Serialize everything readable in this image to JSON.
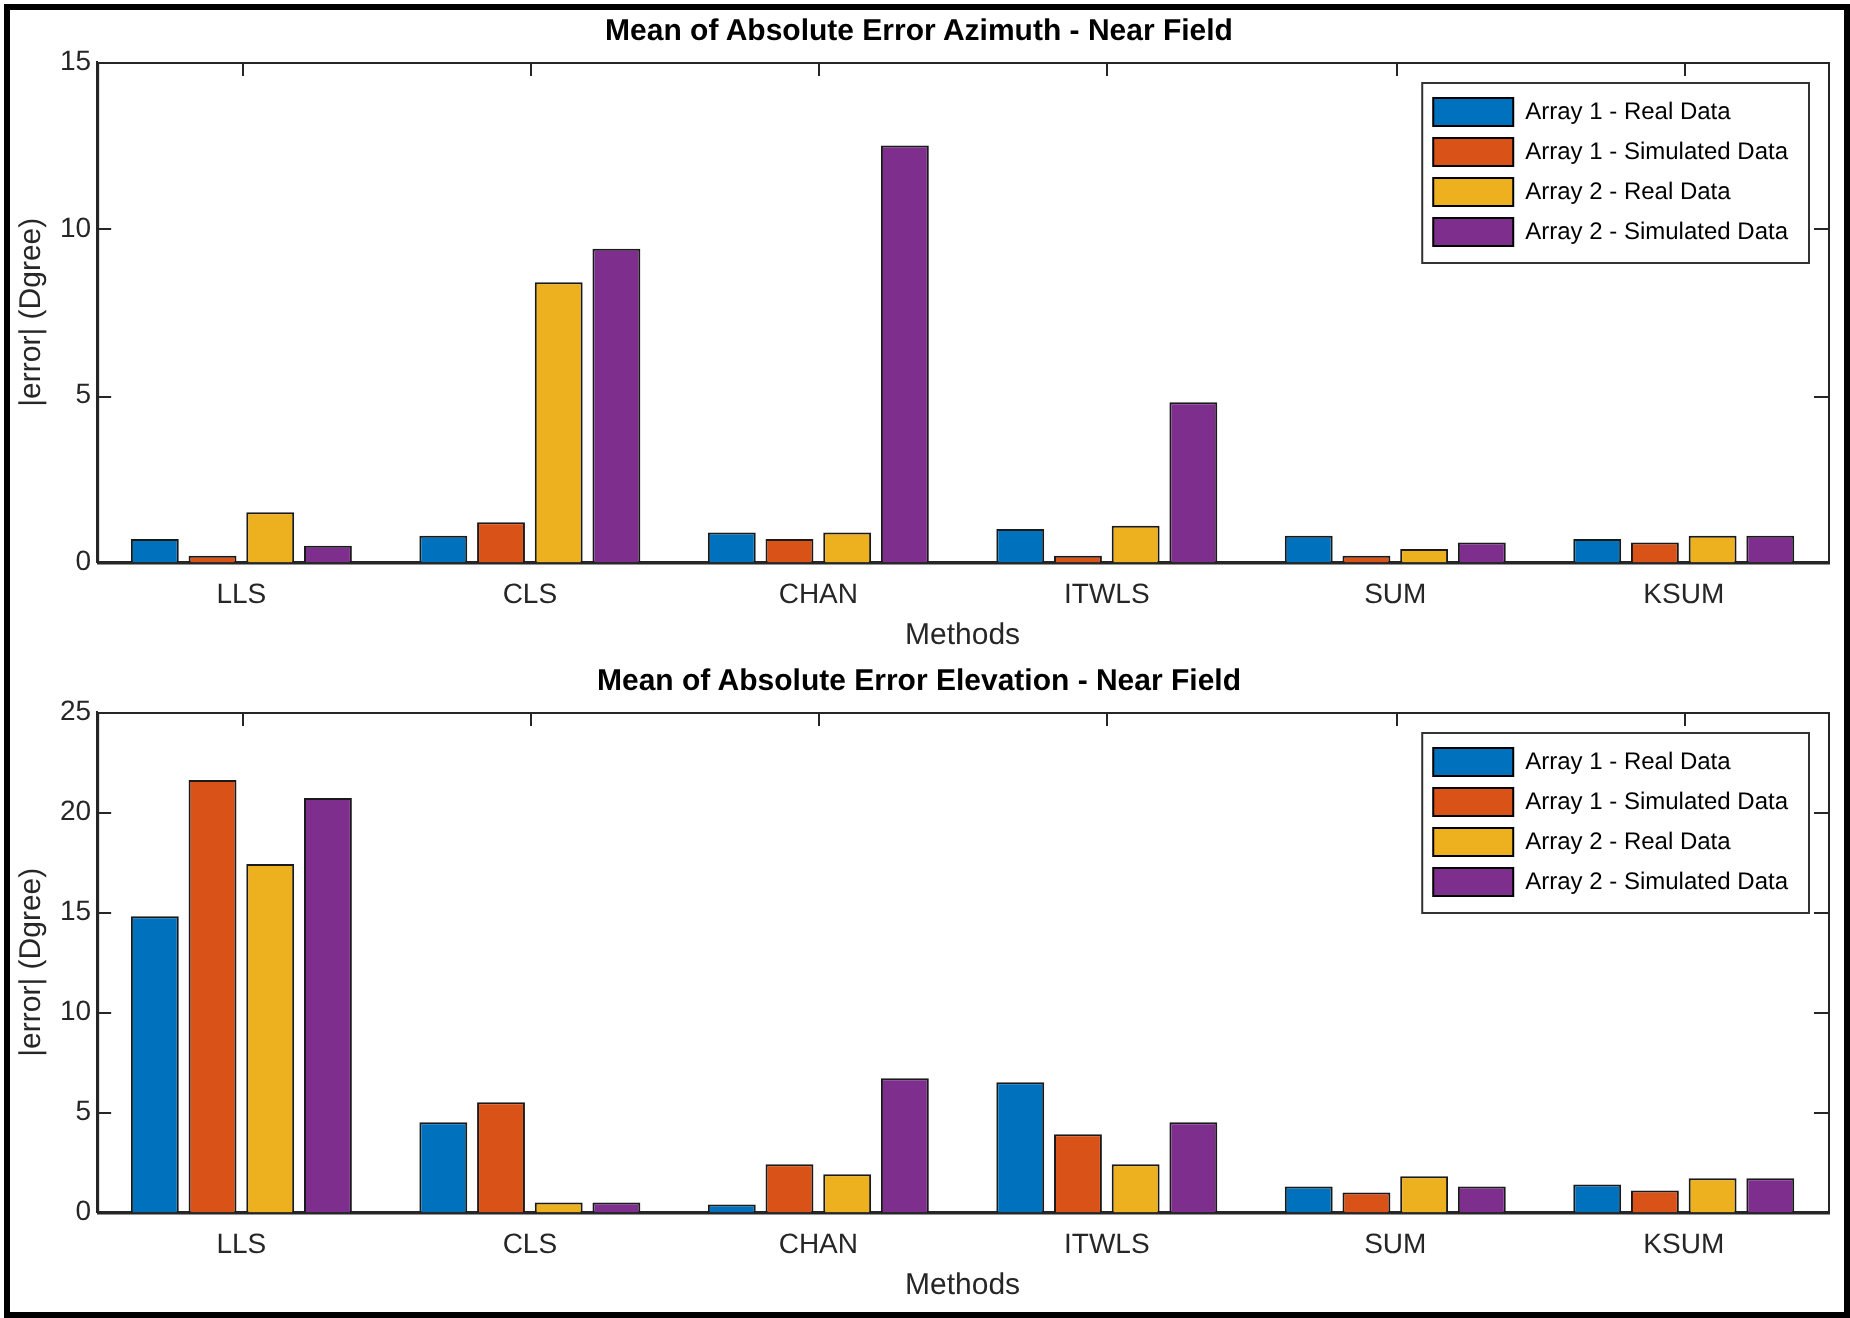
{
  "chart_data": [
    {
      "type": "bar",
      "title": "Mean of Absolute Error Azimuth - Near Field",
      "xlabel": "Methods",
      "ylabel": "|error| (Dgree)",
      "categories": [
        "LLS",
        "CLS",
        "CHAN",
        "ITWLS",
        "SUM",
        "KSUM"
      ],
      "ylim": [
        0,
        15
      ],
      "yticks": [
        0,
        5,
        10,
        15
      ],
      "grid": false,
      "legend": "top right",
      "series": [
        {
          "name": "Array 1 - Real Data",
          "color": "#0072bd",
          "values": [
            0.7,
            0.8,
            0.9,
            1.0,
            0.8,
            0.7
          ]
        },
        {
          "name": "Array 1 - Simulated Data",
          "color": "#d95319",
          "values": [
            0.2,
            1.2,
            0.7,
            0.2,
            0.2,
            0.6
          ]
        },
        {
          "name": "Array 2 - Real Data",
          "color": "#edb120",
          "values": [
            1.5,
            8.4,
            0.9,
            1.1,
            0.4,
            0.8
          ]
        },
        {
          "name": "Array 2 - Simulated Data",
          "color": "#7e2f8e",
          "values": [
            0.5,
            9.4,
            12.5,
            4.8,
            0.6,
            0.8
          ]
        }
      ]
    },
    {
      "type": "bar",
      "title": "Mean of Absolute Error Elevation - Near Field",
      "xlabel": "Methods",
      "ylabel": "|error| (Dgree)",
      "categories": [
        "LLS",
        "CLS",
        "CHAN",
        "ITWLS",
        "SUM",
        "KSUM"
      ],
      "ylim": [
        0,
        25
      ],
      "yticks": [
        0,
        5,
        10,
        15,
        20,
        25
      ],
      "grid": false,
      "legend": "top right",
      "series": [
        {
          "name": "Array 1 - Real Data",
          "color": "#0072bd",
          "values": [
            14.8,
            4.5,
            0.4,
            6.5,
            1.3,
            1.4
          ]
        },
        {
          "name": "Array 1 - Simulated Data",
          "color": "#d95319",
          "values": [
            21.6,
            5.5,
            2.4,
            3.9,
            1.0,
            1.1
          ]
        },
        {
          "name": "Array 2 - Real Data",
          "color": "#edb120",
          "values": [
            17.4,
            0.5,
            1.9,
            2.4,
            1.8,
            1.7
          ]
        },
        {
          "name": "Array 2 - Simulated Data",
          "color": "#7e2f8e",
          "values": [
            20.7,
            0.5,
            6.7,
            4.5,
            1.3,
            1.7
          ]
        }
      ]
    }
  ]
}
